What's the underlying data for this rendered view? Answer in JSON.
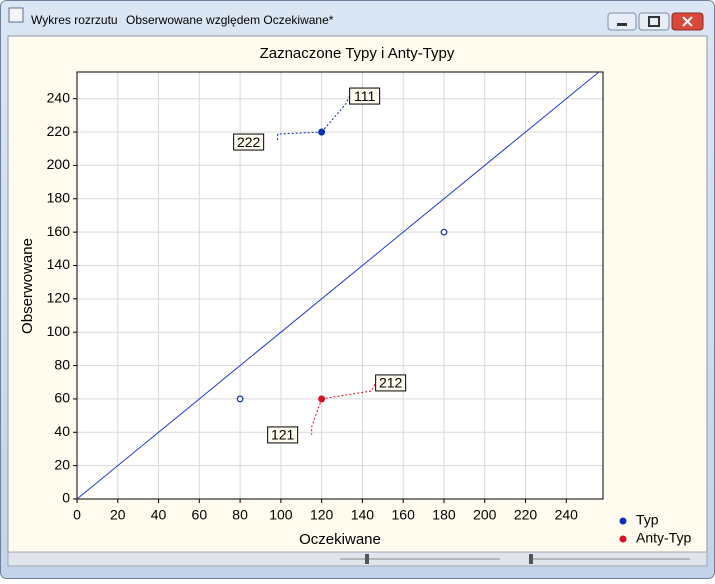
{
  "window": {
    "app_name": "Wykres rozrzutu",
    "document_title": "Obserwowane względem Oczekiwane*"
  },
  "chart_data": {
    "type": "scatter",
    "title": "Zaznaczone Typy i Anty-Typy",
    "x_label": "Oczekiwane",
    "y_label": "Obserwowane",
    "xlim": [
      0,
      258
    ],
    "ylim": [
      0,
      256
    ],
    "xticks": [
      0,
      20,
      40,
      60,
      80,
      100,
      120,
      140,
      160,
      180,
      200,
      220,
      240
    ],
    "yticks": [
      0,
      20,
      40,
      60,
      80,
      100,
      120,
      140,
      160,
      180,
      200,
      220,
      240
    ],
    "grid": true,
    "diagonal": true,
    "legend": "bottom-right",
    "series": [
      {
        "name": "Typ",
        "color": "#0a2fbf",
        "marker": "filled",
        "x": [
          120,
          120
        ],
        "values": [
          220,
          220
        ],
        "point_labels": [
          "111",
          "222"
        ]
      },
      {
        "name": "Anty-Typ",
        "color": "#d81020",
        "marker": "filled",
        "x": [
          120,
          120
        ],
        "values": [
          60,
          60
        ],
        "point_labels": [
          "212",
          "121"
        ]
      },
      {
        "color": "#0a2fbf",
        "marker": "open",
        "x": [
          80,
          180
        ],
        "values": [
          60,
          160
        ]
      }
    ]
  }
}
